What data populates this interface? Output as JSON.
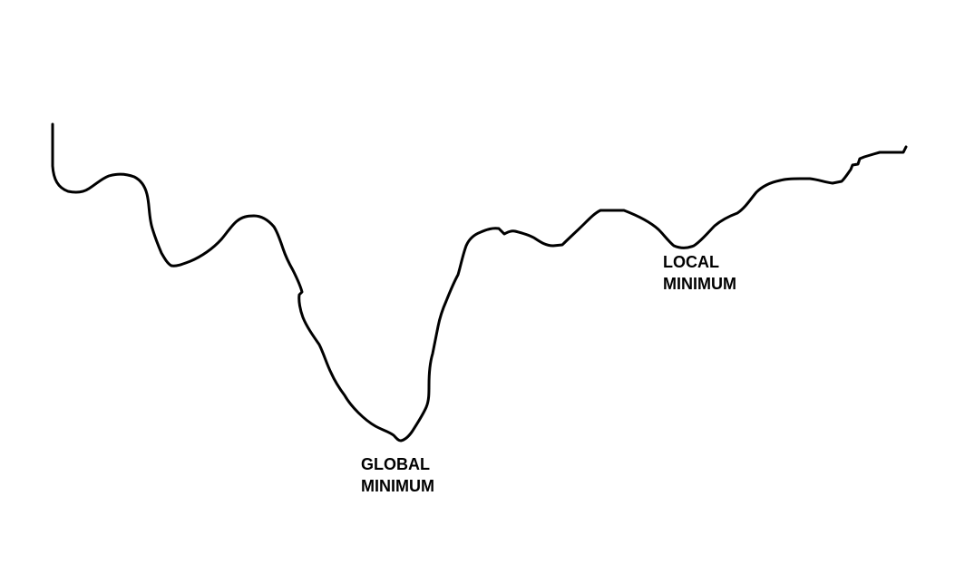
{
  "diagram": {
    "background": "#ffffff",
    "line_color": "#000000",
    "global_label": {
      "line1": "GLOBAL",
      "line2": "MINIMUM"
    },
    "local_label": {
      "line1": "LOCAL",
      "line2": "MINIMUM"
    }
  }
}
